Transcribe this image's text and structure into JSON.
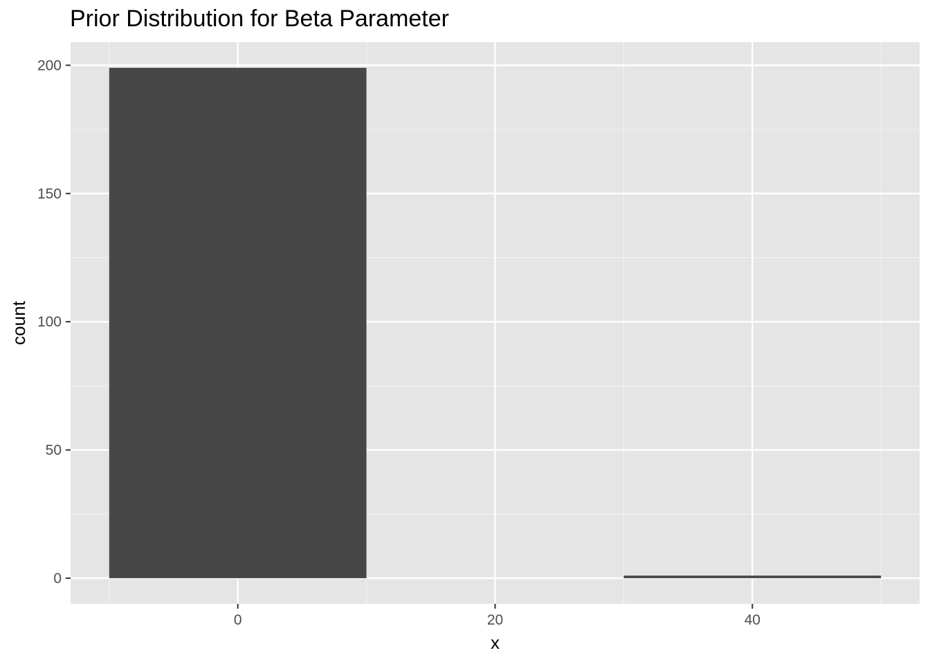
{
  "chart_data": {
    "type": "bar",
    "title": "Prior Distribution for Beta Parameter",
    "xlabel": "x",
    "ylabel": "count",
    "bins": [
      {
        "x_start": -10,
        "x_end": 10,
        "count": 199
      },
      {
        "x_start": 10,
        "x_end": 30,
        "count": 0
      },
      {
        "x_start": 30,
        "x_end": 50,
        "count": 1
      }
    ],
    "x_ticks": [
      0,
      20,
      40
    ],
    "x_tick_labels": [
      "0",
      "20",
      "40"
    ],
    "y_ticks": [
      0,
      50,
      100,
      150,
      200
    ],
    "y_tick_labels": [
      "0",
      "50",
      "100",
      "150",
      "200"
    ],
    "xlim": [
      -13,
      53
    ],
    "ylim": [
      -10,
      209
    ],
    "grid": true,
    "colors": {
      "panel_background": "#e5e5e5",
      "grid_major": "#ffffff",
      "grid_minor": "#f2f2f2",
      "bar_fill": "#474747"
    }
  }
}
